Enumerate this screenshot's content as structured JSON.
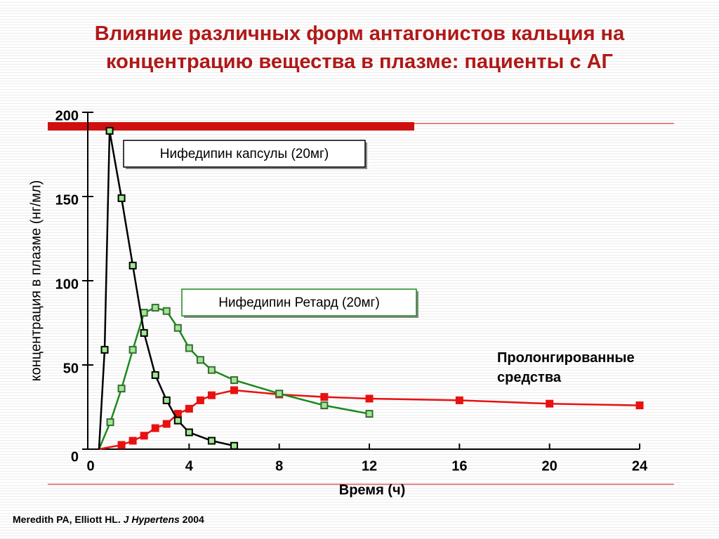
{
  "chart_data": {
    "type": "line",
    "title": "Влияние различных форм антагонистов кальция на\nконцентрацию вещества в плазме: пациенты с АГ",
    "x_label": "Время (ч)",
    "y_label": "концентрация в плазме (нг/мл)",
    "xlim": [
      0,
      24
    ],
    "xticks": [
      0,
      4,
      8,
      12,
      16,
      20,
      24
    ],
    "ylim": [
      0,
      200
    ],
    "yticks": [
      0,
      50,
      100,
      150,
      200
    ],
    "series": [
      {
        "name": "Нифедипин капсулы (20мг)",
        "color": "#000000",
        "marker_fill": "#9fe88f",
        "x": [
          0,
          0.25,
          0.47,
          1,
          1.5,
          2,
          2.5,
          3,
          3.5,
          4,
          5,
          6
        ],
        "values": [
          0,
          59,
          189,
          149,
          109,
          69,
          44,
          29,
          17,
          10,
          5,
          2
        ]
      },
      {
        "name": "Нифедипин Ретард (20мг)",
        "color": "#1a8a1a",
        "marker_fill": "#9fe88f",
        "x": [
          0,
          0.5,
          1,
          1.5,
          2,
          2.5,
          3,
          3.5,
          4,
          4.5,
          5,
          6,
          8,
          10,
          12
        ],
        "values": [
          0,
          16,
          36,
          59,
          81,
          84,
          82,
          72,
          60,
          53,
          47,
          41,
          33,
          26,
          21
        ]
      },
      {
        "name": "Пролонгированные средства",
        "color": "#e81010",
        "marker_fill": "#e81010",
        "x": [
          0,
          1,
          1.5,
          2,
          2.5,
          3,
          3.5,
          4,
          4.5,
          5,
          6,
          8,
          10,
          12,
          16,
          20,
          24
        ],
        "values": [
          0,
          2.5,
          5,
          8,
          12.5,
          15,
          21,
          24,
          29,
          32,
          35,
          32.5,
          31,
          30,
          29,
          27,
          26
        ]
      }
    ],
    "source": [
      "Meredith PA,  Elliott HL. ",
      "J Hypertens",
      " 2004"
    ]
  }
}
